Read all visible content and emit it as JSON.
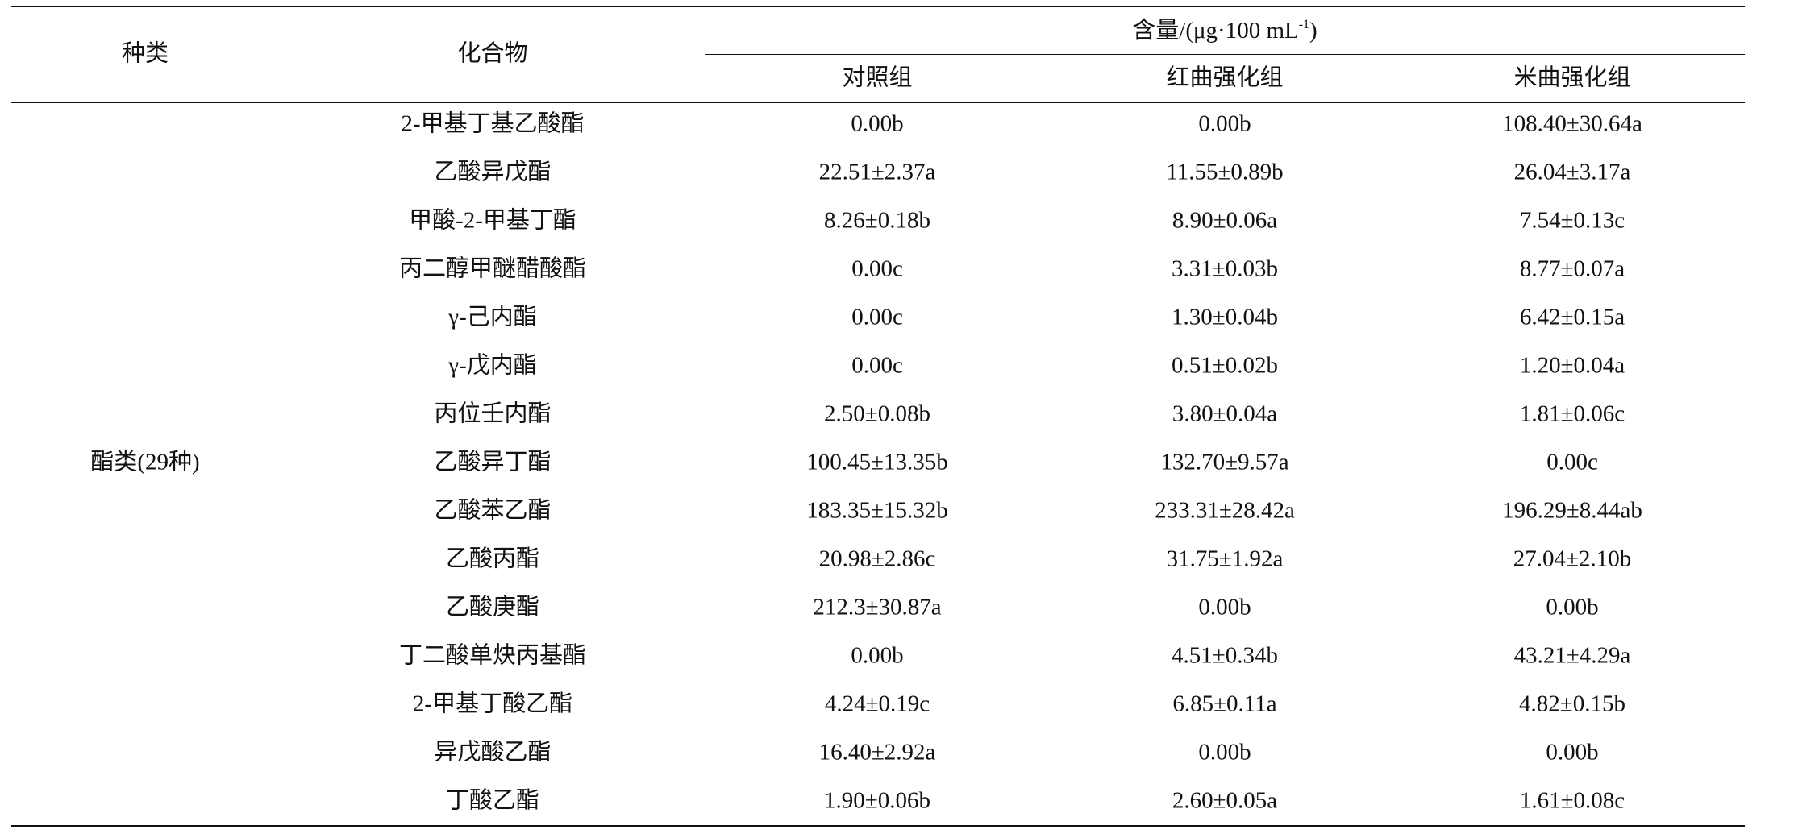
{
  "header": {
    "category": "种类",
    "compound": "化合物",
    "content": {
      "text": "含量/(μg·100 mL",
      "sup": "-1",
      "close": ")"
    },
    "groups": [
      "对照组",
      "红曲强化组",
      "米曲强化组"
    ]
  },
  "table": {
    "category": "酯类(29种)",
    "rows": [
      [
        "2-甲基丁基乙酸酯",
        "0.00b",
        "0.00b",
        "108.40±30.64a"
      ],
      [
        "乙酸异戊酯",
        "22.51±2.37a",
        "11.55±0.89b",
        "26.04±3.17a"
      ],
      [
        "甲酸-2-甲基丁酯",
        "8.26±0.18b",
        "8.90±0.06a",
        "7.54±0.13c"
      ],
      [
        "丙二醇甲醚醋酸酯",
        "0.00c",
        "3.31±0.03b",
        "8.77±0.07a"
      ],
      [
        "γ-己内酯",
        "0.00c",
        "1.30±0.04b",
        "6.42±0.15a"
      ],
      [
        "γ-戊内酯",
        "0.00c",
        "0.51±0.02b",
        "1.20±0.04a"
      ],
      [
        "丙位壬内酯",
        "2.50±0.08b",
        "3.80±0.04a",
        "1.81±0.06c"
      ],
      [
        "乙酸异丁酯",
        "100.45±13.35b",
        "132.70±9.57a",
        "0.00c"
      ],
      [
        "乙酸苯乙酯",
        "183.35±15.32b",
        "233.31±28.42a",
        "196.29±8.44ab"
      ],
      [
        "乙酸丙酯",
        "20.98±2.86c",
        "31.75±1.92a",
        "27.04±2.10b"
      ],
      [
        "乙酸庚酯",
        "212.3±30.87a",
        "0.00b",
        "0.00b"
      ],
      [
        "丁二酸单炔丙基酯",
        "0.00b",
        "4.51±0.34b",
        "43.21±4.29a"
      ],
      [
        "2-甲基丁酸乙酯",
        "4.24±0.19c",
        "6.85±0.11a",
        "4.82±0.15b"
      ],
      [
        "异戊酸乙酯",
        "16.40±2.92a",
        "0.00b",
        "0.00b"
      ],
      [
        "丁酸乙酯",
        "1.90±0.06b",
        "2.60±0.05a",
        "1.61±0.08c"
      ]
    ]
  }
}
